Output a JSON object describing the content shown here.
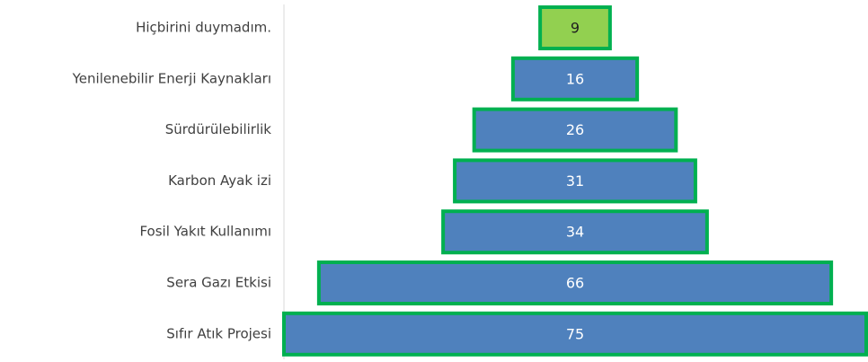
{
  "chart_data": {
    "type": "bar",
    "orientation": "horizontal",
    "layout": "centered-funnel",
    "categories": [
      "Hiçbirini duymadım.",
      "Yenilenebilir Enerji Kaynakları",
      "Sürdürülebilirlik",
      "Karbon Ayak izi",
      "Fosil Yakıt Kullanımı",
      "Sera Gazı Etkisi",
      "Sıfır Atık Projesi"
    ],
    "values": [
      9,
      16,
      26,
      31,
      34,
      66,
      75
    ],
    "xlim": [
      0,
      75
    ],
    "title": "",
    "xlabel": "",
    "ylabel": "",
    "grid": false,
    "legend": "none",
    "colors": {
      "bar_fill": "#4f81bd",
      "bar_fill_highlight": "#92d050",
      "bar_stroke": "#00b050",
      "label_text_light": "#ffffff",
      "label_text_dark": "#1f1f1f",
      "category_text": "#404040",
      "axis_line": "#d9d9d9"
    },
    "highlight_index": 0
  }
}
